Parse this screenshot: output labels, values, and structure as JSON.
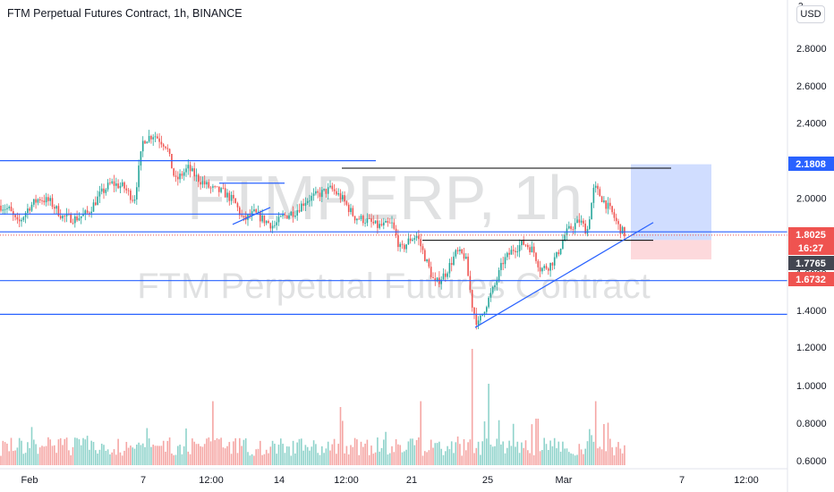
{
  "header": {
    "title": "FTM Perpetual Futures Contract, 1h, BINANCE",
    "currency": "USD",
    "top_tick": "3"
  },
  "watermark": {
    "symbol": "FTMPERP, 1h",
    "name": "FTM Perpetual Futures Contract"
  },
  "colors": {
    "up": "#26a69a",
    "down": "#ef5350",
    "drawing": "#2962ff",
    "level_black": "#000000",
    "long_profit": "#2962ff",
    "long_loss": "#f7525f"
  },
  "price_labels": [
    {
      "value": "2.1808",
      "kind": "target"
    },
    {
      "value": "1.8025",
      "kind": "last"
    },
    {
      "value": "16:27",
      "kind": "countdown"
    },
    {
      "value": "1.7765",
      "kind": "entry"
    },
    {
      "value": "1.6732",
      "kind": "stop"
    }
  ],
  "chart_data": {
    "type": "candlestick",
    "title": "FTM Perpetual Futures Contract, 1h, BINANCE",
    "y_axis": {
      "ticks": [
        "2.8000",
        "2.6000",
        "2.4000",
        "2.2000",
        "2.0000",
        "1.8000",
        "1.6000",
        "1.4000",
        "1.2000",
        "1.0000",
        "0.8000",
        "0.6000"
      ],
      "tick_values": [
        2.8,
        2.6,
        2.4,
        2.2,
        2.0,
        1.8,
        1.6,
        1.4,
        1.2,
        1.0,
        0.8,
        0.6
      ],
      "range": [
        0.55,
        3.0
      ]
    },
    "x_axis": {
      "ticks": [
        "Feb",
        "7",
        "12:00",
        "14",
        "12:00",
        "21",
        "25",
        "Mar",
        "7",
        "12:00"
      ]
    },
    "price_path": {
      "x_range": [
        0,
        700
      ],
      "points": [
        [
          0,
          1.96
        ],
        [
          10,
          1.94
        ],
        [
          20,
          1.86
        ],
        [
          32,
          1.95
        ],
        [
          44,
          2.0
        ],
        [
          56,
          1.98
        ],
        [
          70,
          1.9
        ],
        [
          84,
          1.89
        ],
        [
          98,
          1.92
        ],
        [
          112,
          2.02
        ],
        [
          124,
          2.08
        ],
        [
          138,
          2.06
        ],
        [
          150,
          1.99
        ],
        [
          160,
          2.31
        ],
        [
          172,
          2.34
        ],
        [
          186,
          2.28
        ],
        [
          196,
          2.09
        ],
        [
          210,
          2.16
        ],
        [
          222,
          2.1
        ],
        [
          236,
          2.05
        ],
        [
          250,
          2.03
        ],
        [
          262,
          1.98
        ],
        [
          272,
          1.88
        ],
        [
          284,
          1.92
        ],
        [
          296,
          1.88
        ],
        [
          306,
          1.85
        ],
        [
          316,
          1.9
        ],
        [
          330,
          1.93
        ],
        [
          342,
          1.99
        ],
        [
          356,
          2.02
        ],
        [
          370,
          2.05
        ],
        [
          382,
          2.0
        ],
        [
          396,
          1.9
        ],
        [
          410,
          1.88
        ],
        [
          422,
          1.85
        ],
        [
          438,
          1.86
        ],
        [
          448,
          1.72
        ],
        [
          458,
          1.78
        ],
        [
          466,
          1.8
        ],
        [
          476,
          1.67
        ],
        [
          486,
          1.54
        ],
        [
          498,
          1.6
        ],
        [
          510,
          1.71
        ],
        [
          520,
          1.69
        ],
        [
          528,
          1.42
        ],
        [
          534,
          1.32
        ],
        [
          542,
          1.42
        ],
        [
          552,
          1.52
        ],
        [
          562,
          1.66
        ],
        [
          574,
          1.73
        ],
        [
          586,
          1.76
        ],
        [
          596,
          1.72
        ],
        [
          604,
          1.62
        ],
        [
          614,
          1.64
        ],
        [
          622,
          1.69
        ],
        [
          632,
          1.81
        ],
        [
          640,
          1.85
        ],
        [
          648,
          1.88
        ],
        [
          656,
          1.82
        ],
        [
          664,
          2.06
        ],
        [
          674,
          1.99
        ],
        [
          684,
          1.92
        ],
        [
          692,
          1.84
        ],
        [
          700,
          1.8
        ]
      ]
    },
    "volume": {
      "range": [
        0,
        1.0
      ],
      "spikes": [
        [
          238,
          0.55
        ],
        [
          380,
          0.5
        ],
        [
          470,
          0.55
        ],
        [
          527,
          1.0
        ],
        [
          546,
          0.7
        ],
        [
          600,
          0.4
        ],
        [
          666,
          0.55
        ]
      ]
    },
    "drawings": {
      "horizontal_levels": [
        {
          "price": 2.2,
          "x": [
            0,
            420
          ]
        },
        {
          "price": 1.915,
          "x": [
            0,
            318
          ]
        },
        {
          "price": 1.82,
          "x": [
            0,
            932
          ]
        },
        {
          "price": 1.56,
          "x": [
            0,
            932
          ]
        },
        {
          "price": 1.38,
          "x": [
            0,
            880
          ]
        },
        {
          "price": 2.08,
          "x": [
            245,
            318
          ]
        }
      ],
      "black_levels": [
        {
          "price": 2.16,
          "x": [
            382,
            750
          ]
        },
        {
          "price": 1.775,
          "x": [
            472,
            730
          ]
        }
      ],
      "trendlines": [
        {
          "from": [
            260,
            1.86
          ],
          "to": [
            302,
            1.95
          ]
        },
        {
          "from": [
            531,
            1.31
          ],
          "to": [
            730,
            1.87
          ]
        }
      ],
      "long_position": {
        "target": 2.1808,
        "entry": 1.7765,
        "stop": 1.6732,
        "x": [
          705,
          795
        ]
      }
    }
  }
}
